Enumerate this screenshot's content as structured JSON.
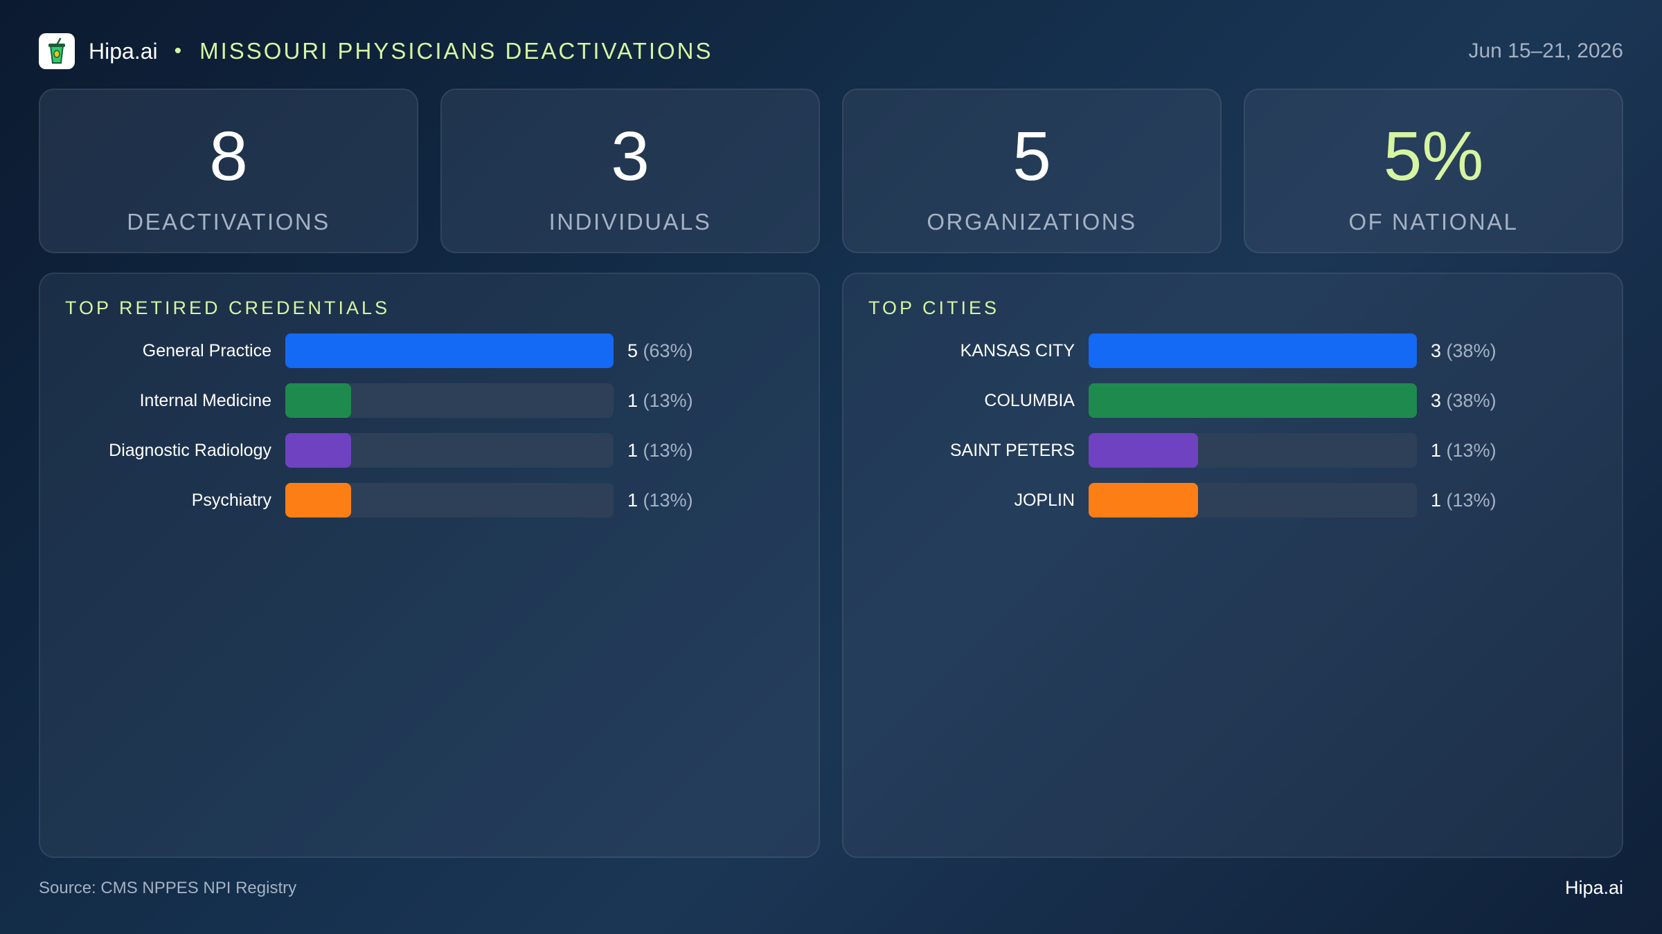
{
  "header": {
    "brand": "Hipa.ai",
    "separator": "•",
    "title": "MISSOURI PHYSICIANS DEACTIVATIONS",
    "date": "Jun 15–21, 2026"
  },
  "kpis": [
    {
      "value": "8",
      "label": "DEACTIVATIONS",
      "accent": false
    },
    {
      "value": "3",
      "label": "INDIVIDUALS",
      "accent": false
    },
    {
      "value": "5",
      "label": "ORGANIZATIONS",
      "accent": false
    },
    {
      "value": "5%",
      "label": "OF NATIONAL",
      "accent": true
    }
  ],
  "colors": {
    "accent": "#d6f5a1",
    "series": [
      "#1469f5",
      "#1e8a4e",
      "#6f42c1",
      "#fd7e14"
    ],
    "track": "#2d4057"
  },
  "chart_data": [
    {
      "type": "bar",
      "orientation": "horizontal",
      "title": "TOP RETIRED CREDENTIALS",
      "categories": [
        "General Practice",
        "Internal Medicine",
        "Diagnostic Radiology",
        "Psychiatry"
      ],
      "values": [
        5,
        1,
        1,
        1
      ],
      "percent_labels": [
        "(63%)",
        "(13%)",
        "(13%)",
        "(13%)"
      ],
      "xlim": [
        0,
        5
      ]
    },
    {
      "type": "bar",
      "orientation": "horizontal",
      "title": "TOP CITIES",
      "categories": [
        "KANSAS CITY",
        "COLUMBIA",
        "SAINT PETERS",
        "JOPLIN"
      ],
      "values": [
        3,
        3,
        1,
        1
      ],
      "percent_labels": [
        "(38%)",
        "(38%)",
        "(13%)",
        "(13%)"
      ],
      "xlim": [
        0,
        3
      ]
    }
  ],
  "footer": {
    "source": "Source: CMS NPPES NPI Registry",
    "brand": "Hipa.ai"
  }
}
